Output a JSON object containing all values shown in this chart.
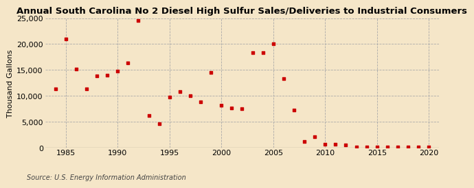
{
  "title": "Annual South Carolina No 2 Diesel High Sulfur Sales/Deliveries to Industrial Consumers",
  "ylabel": "Thousand Gallons",
  "source": "Source: U.S. Energy Information Administration",
  "background_color": "#f5e6c8",
  "marker_color": "#cc0000",
  "years": [
    1984,
    1985,
    1986,
    1987,
    1988,
    1989,
    1990,
    1991,
    1992,
    1993,
    1994,
    1995,
    1996,
    1997,
    1998,
    1999,
    2000,
    2001,
    2002,
    2003,
    2004,
    2005,
    2006,
    2007,
    2008,
    2009,
    2010,
    2011,
    2012,
    2013,
    2014,
    2015,
    2016,
    2017,
    2018,
    2019,
    2020
  ],
  "values": [
    11300,
    21000,
    15200,
    11400,
    13900,
    14000,
    14800,
    16400,
    24500,
    6200,
    4600,
    9800,
    10800,
    10100,
    8900,
    14500,
    8200,
    7700,
    7600,
    18400,
    18300,
    20000,
    13300,
    7300,
    1200,
    2200,
    700,
    700,
    600,
    200,
    200,
    100,
    100,
    100,
    100,
    100,
    100
  ],
  "ylim": [
    0,
    25000
  ],
  "yticks": [
    0,
    5000,
    10000,
    15000,
    20000,
    25000
  ],
  "xticks": [
    1985,
    1990,
    1995,
    2000,
    2005,
    2010,
    2015,
    2020
  ],
  "xlim": [
    1983,
    2021
  ],
  "title_fontsize": 9.5,
  "tick_fontsize": 8,
  "ylabel_fontsize": 8,
  "source_fontsize": 7
}
